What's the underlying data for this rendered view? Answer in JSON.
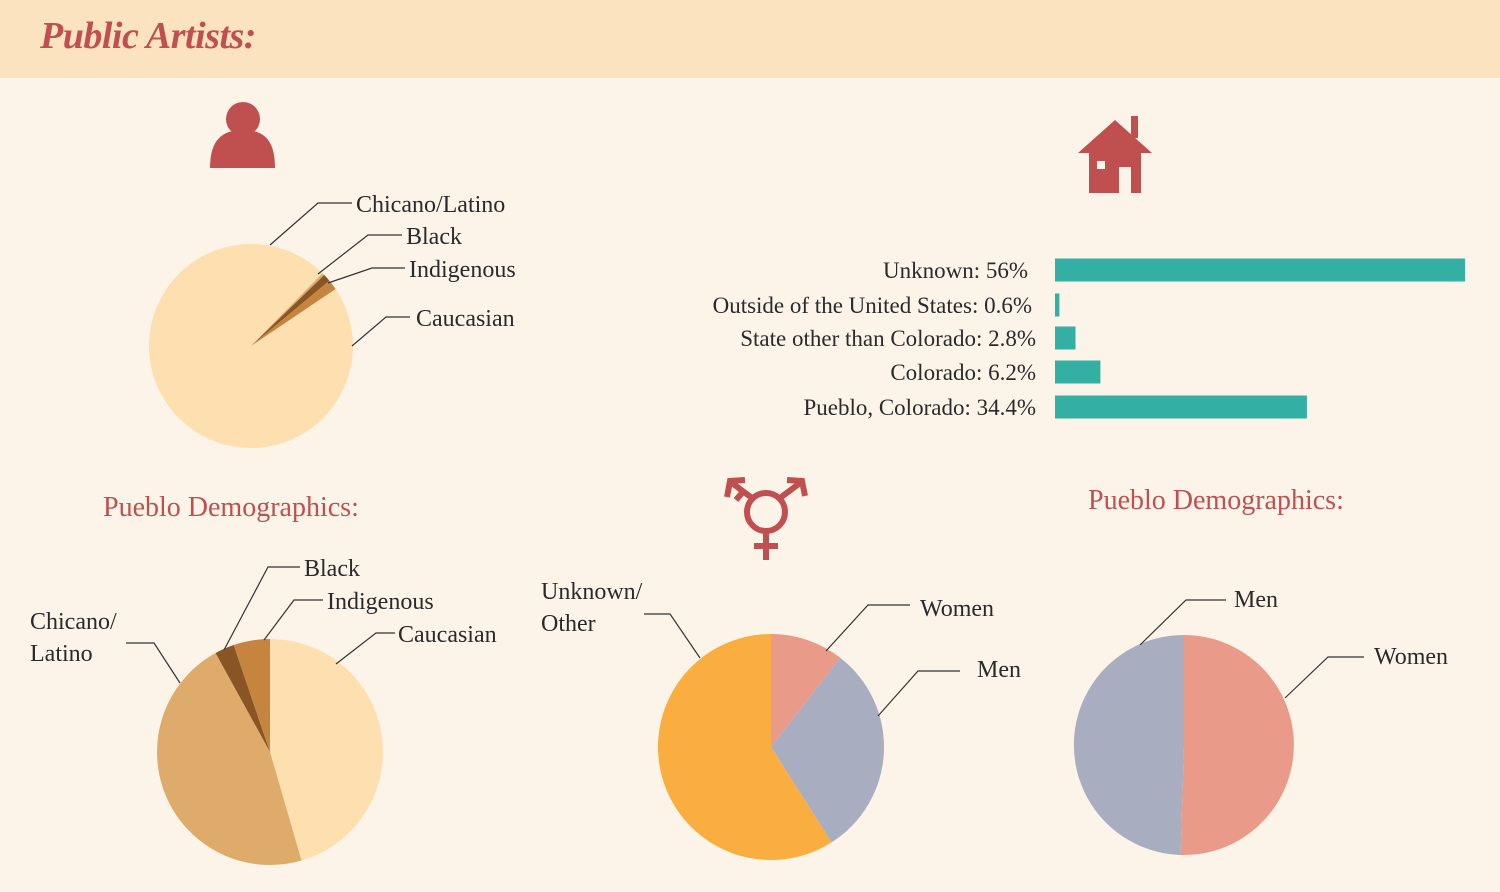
{
  "header": {
    "title": "Public Artists:"
  },
  "icons": {
    "person": "person-icon",
    "house": "house-icon",
    "gender": "transgender-symbol-icon"
  },
  "colors": {
    "accent": "#c0504f",
    "bar": "#33b0a3",
    "caucasian_light": "#fddfb0",
    "chicano": "#dfab6a",
    "indigenous": "#c6853e",
    "black": "#8a5525",
    "women": "#e99a88",
    "men": "#a8aec0",
    "unknown_other": "#f9ae3f"
  },
  "chart_data": [
    {
      "type": "pie",
      "title": "",
      "slices": [
        {
          "label": "Chicano/Latino",
          "value": 0.4,
          "color": "#dfab6a"
        },
        {
          "label": "Black",
          "value": 1.2,
          "color": "#8a5525"
        },
        {
          "label": "Indigenous",
          "value": 1.6,
          "color": "#c6853e"
        },
        {
          "label": "Caucasian",
          "value": 96.8,
          "color": "#fddfb0"
        }
      ]
    },
    {
      "type": "bar",
      "orientation": "horizontal",
      "title": "",
      "categories": [
        "Unknown: 56%",
        "Outside of the United States: 0.6%",
        "State other than Colorado: 2.8%",
        "Colorado: 6.2%",
        "Pueblo, Colorado: 34.4%"
      ],
      "values": [
        56,
        0.6,
        2.8,
        6.2,
        34.4
      ],
      "xlim": [
        0,
        56
      ]
    },
    {
      "type": "pie",
      "title": "Pueblo Demographics:",
      "slices": [
        {
          "label": "Caucasian",
          "value": 45.5,
          "color": "#fddfb0"
        },
        {
          "label": "Chicano/ Latino",
          "value": 46.5,
          "color": "#dfab6a"
        },
        {
          "label": "Black",
          "value": 2.8,
          "color": "#8a5525"
        },
        {
          "label": "Indigenous",
          "value": 5.2,
          "color": "#c6853e"
        }
      ]
    },
    {
      "type": "pie",
      "title": "",
      "slices": [
        {
          "label": "Women",
          "value": 10.5,
          "color": "#e99a88"
        },
        {
          "label": "Men",
          "value": 30.5,
          "color": "#a8aec0"
        },
        {
          "label": "Unknown/ Other",
          "value": 59,
          "color": "#f9ae3f"
        }
      ]
    },
    {
      "type": "pie",
      "title": "Pueblo Demographics:",
      "slices": [
        {
          "label": "Women",
          "value": 50.5,
          "color": "#e99a88"
        },
        {
          "label": "Men",
          "value": 49.5,
          "color": "#a8aec0"
        }
      ]
    }
  ]
}
